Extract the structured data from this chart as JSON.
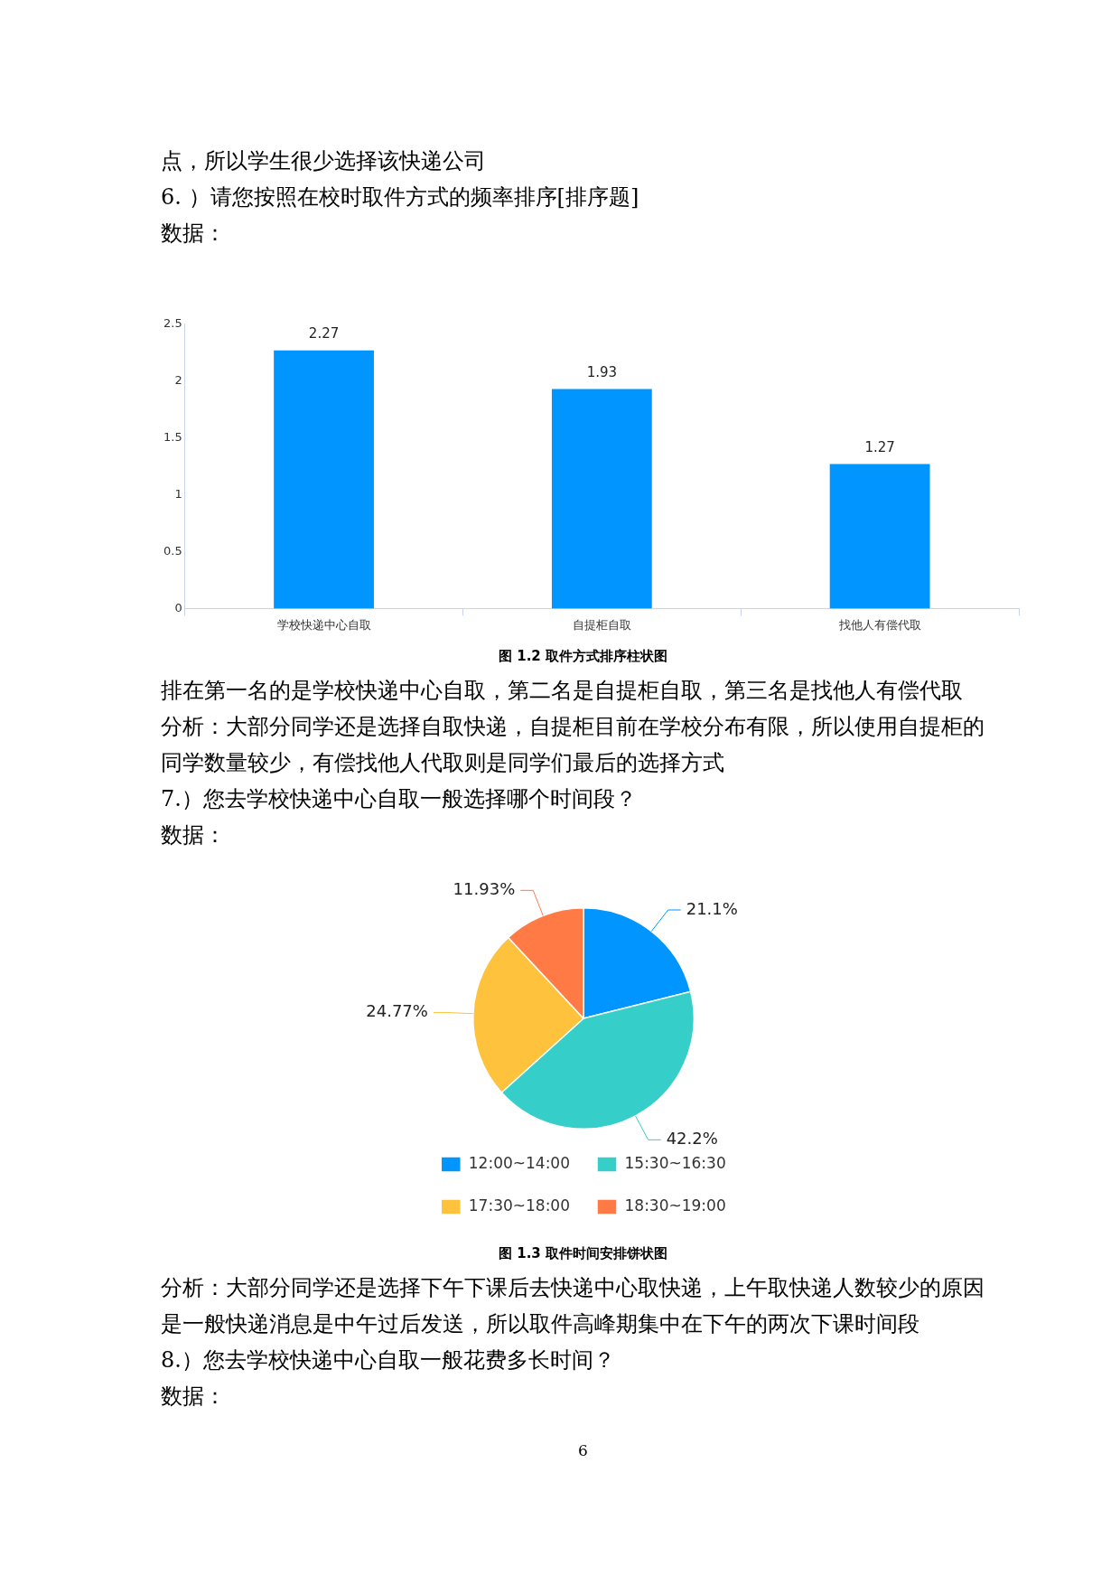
{
  "chart_data": [
    {
      "type": "bar",
      "title": "图 1.2  取件方式排序柱状图",
      "categories": [
        "学校快递中心自取",
        "自提柜自取",
        "找他人有偿代取"
      ],
      "values": [
        2.27,
        1.93,
        1.27
      ],
      "color": "#0095ff",
      "ylim": [
        0,
        2.5
      ],
      "yticks": [
        0,
        0.5,
        1,
        1.5,
        2,
        2.5
      ],
      "grid": false,
      "legend": false,
      "data_labels": true,
      "annotations": [
        "点，所以学生很少选择该快递公司",
        "6. ）请您按照在校时取件方式的频率排序[排序题]",
        "数据："
      ]
    },
    {
      "type": "pie",
      "title": "图 1.3  取件时间安排饼状图",
      "categories": [
        "12:00~14:00",
        "15:30~16:30",
        "17:30~18:00",
        "18:30~19:00"
      ],
      "values": [
        21.1,
        42.2,
        24.77,
        11.93
      ],
      "value_labels": [
        "21.1%",
        "42.2%",
        "24.77%",
        "11.93%"
      ],
      "colors": [
        "#0095ff",
        "#36cec8",
        "#fec23c",
        "#ff7a45"
      ],
      "legend": "bottom",
      "annotations": [
        "排在第一名的是学校快递中心自取，第二名是自提柜自取，第三名是找他人有偿代取",
        "分析：大部分同学还是选择自取快递，自提柜目前在学校分布有限，所以使用自提柜的同学数量较少，有偿找他人代取则是同学们最后的选择方式",
        "7.）您去学校快递中心自取一般选择哪个时间段？",
        "数据：",
        "分析：大部分同学还是选择下午下课后去快递中心取快递，上午取快递人数较少的原因是一般快递消息是中午过后发送，所以取件高峰期集中在下午的两次下课时间段",
        "8.）您去学校快递中心自取一般花费多长时间？",
        "数据：",
        "6"
      ]
    }
  ]
}
